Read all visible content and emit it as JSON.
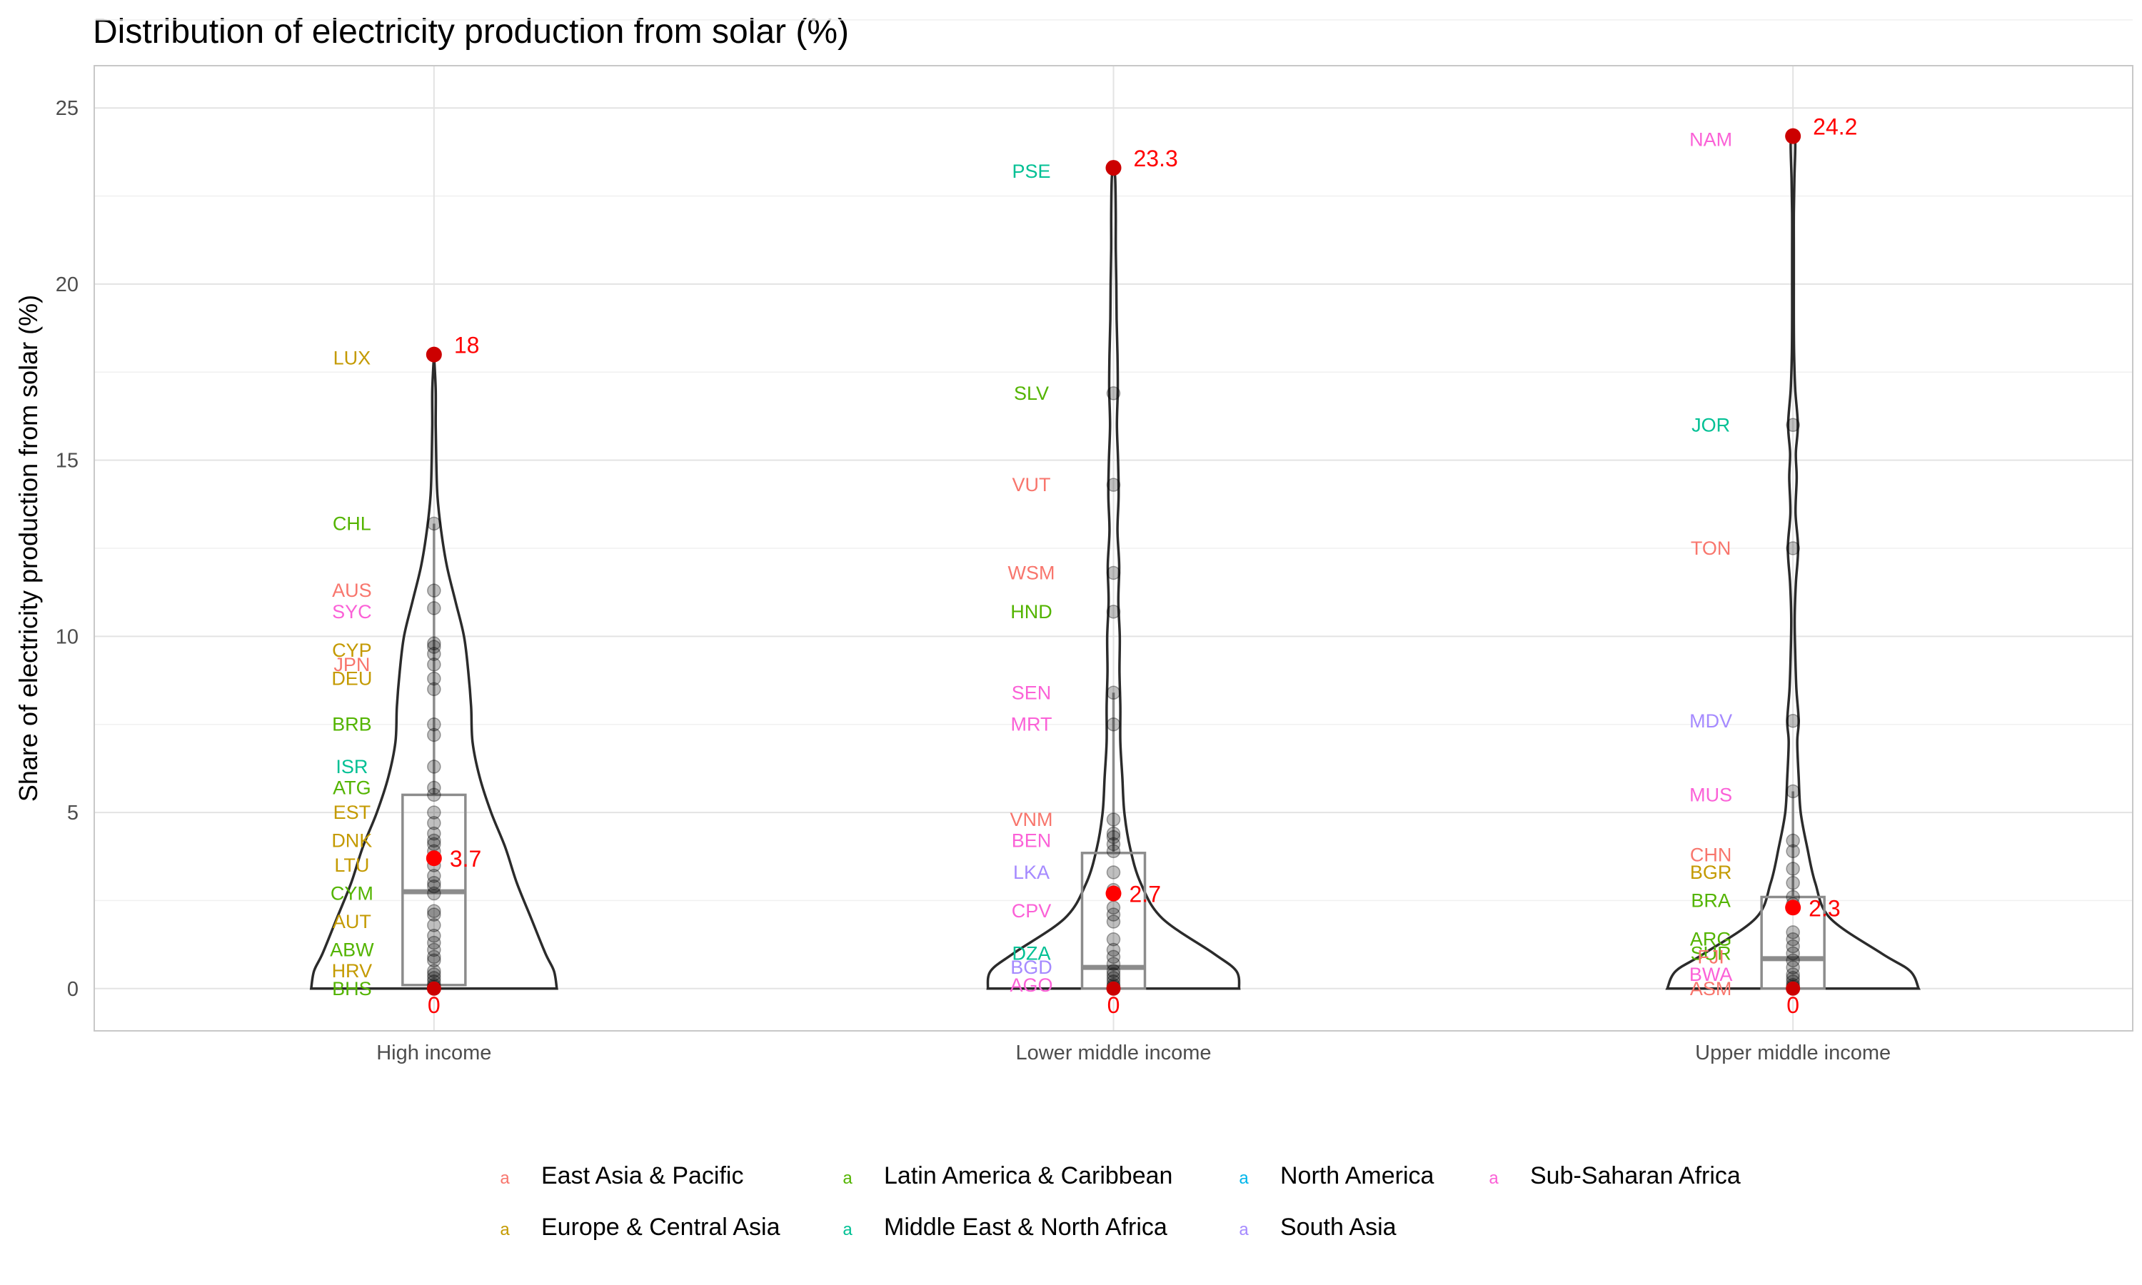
{
  "chart_data": {
    "type": "violin",
    "title": "Distribution of electricity production from solar (%)",
    "xlabel": "",
    "ylabel": "Share of electricity production from solar (%)",
    "ylim": [
      -1.2,
      26.2
    ],
    "y_ticks": [
      0,
      5,
      10,
      15,
      20,
      25
    ],
    "grid": true,
    "legend_position": "bottom",
    "region_colors": {
      "East Asia & Pacific": "#F8766D",
      "Europe & Central Asia": "#C49A00",
      "Latin America & Caribbean": "#53B400",
      "Middle East & North Africa": "#00C094",
      "North America": "#00B6EB",
      "South Asia": "#A58AFF",
      "Sub-Saharan Africa": "#FB61D7"
    },
    "legend": {
      "key_glyph": "a",
      "entries": [
        "East Asia & Pacific",
        "Latin America & Caribbean",
        "North America",
        "Sub-Saharan Africa",
        "Europe & Central Asia",
        "Middle East & North Africa",
        "South Asia"
      ]
    },
    "categories": [
      "High income",
      "Lower middle income",
      "Upper middle income"
    ],
    "groups": [
      {
        "category": "High income",
        "max": 18,
        "max_label": "18",
        "mean": 3.7,
        "mean_label": "3.7",
        "min": 0,
        "min_label": "0",
        "box": {
          "q1": 0.1,
          "median": 2.75,
          "q3": 5.5,
          "whisker_low": 0,
          "whisker_high": 13.2
        },
        "points": [
          18,
          13.2,
          11.3,
          10.8,
          9.8,
          9.7,
          9.5,
          9.2,
          8.8,
          8.5,
          7.5,
          7.2,
          6.3,
          5.7,
          5.5,
          5.0,
          4.7,
          4.4,
          4.2,
          4.1,
          3.9,
          3.5,
          3.2,
          3.0,
          2.9,
          2.7,
          2.2,
          2.1,
          1.8,
          1.5,
          1.3,
          1.1,
          0.9,
          0.8,
          0.5,
          0.4,
          0.3,
          0.2,
          0.1,
          0.05,
          0
        ],
        "violin": [
          [
            0,
            0.43
          ],
          [
            0.5,
            0.42
          ],
          [
            1,
            0.39
          ],
          [
            2,
            0.34
          ],
          [
            3,
            0.29
          ],
          [
            4,
            0.25
          ],
          [
            5,
            0.2
          ],
          [
            6,
            0.16
          ],
          [
            7,
            0.135
          ],
          [
            8,
            0.13
          ],
          [
            9,
            0.12
          ],
          [
            10,
            0.105
          ],
          [
            11,
            0.075
          ],
          [
            12,
            0.045
          ],
          [
            13,
            0.025
          ],
          [
            14,
            0.012
          ],
          [
            15,
            0.008
          ],
          [
            16,
            0.006
          ],
          [
            17,
            0.006
          ],
          [
            18,
            0
          ]
        ],
        "labels": [
          {
            "code": "LUX",
            "value": 17.9,
            "region": "Europe & Central Asia"
          },
          {
            "code": "CHL",
            "value": 13.2,
            "region": "Latin America & Caribbean"
          },
          {
            "code": "AUS",
            "value": 11.3,
            "region": "East Asia & Pacific"
          },
          {
            "code": "SYC",
            "value": 10.7,
            "region": "Sub-Saharan Africa"
          },
          {
            "code": "CYP",
            "value": 9.6,
            "region": "Europe & Central Asia"
          },
          {
            "code": "JPN",
            "value": 9.2,
            "region": "East Asia & Pacific"
          },
          {
            "code": "DEU",
            "value": 8.8,
            "region": "Europe & Central Asia"
          },
          {
            "code": "BRB",
            "value": 7.5,
            "region": "Latin America & Caribbean"
          },
          {
            "code": "ISR",
            "value": 6.3,
            "region": "Middle East & North Africa"
          },
          {
            "code": "ATG",
            "value": 5.7,
            "region": "Latin America & Caribbean"
          },
          {
            "code": "EST",
            "value": 5.0,
            "region": "Europe & Central Asia"
          },
          {
            "code": "DNK",
            "value": 4.2,
            "region": "Europe & Central Asia"
          },
          {
            "code": "LTU",
            "value": 3.5,
            "region": "Europe & Central Asia"
          },
          {
            "code": "CYM",
            "value": 2.7,
            "region": "Latin America & Caribbean"
          },
          {
            "code": "AUT",
            "value": 1.9,
            "region": "Europe & Central Asia"
          },
          {
            "code": "ABW",
            "value": 1.1,
            "region": "Latin America & Caribbean"
          },
          {
            "code": "HRV",
            "value": 0.5,
            "region": "Europe & Central Asia"
          },
          {
            "code": "BHS",
            "value": 0.0,
            "region": "Latin America & Caribbean"
          }
        ]
      },
      {
        "category": "Lower middle income",
        "max": 23.3,
        "max_label": "23.3",
        "mean": 2.7,
        "mean_label": "2.7",
        "min": 0,
        "min_label": "0",
        "box": {
          "q1": 0,
          "median": 0.6,
          "q3": 3.85,
          "whisker_low": 0,
          "whisker_high": 8.4
        },
        "points": [
          23.3,
          16.9,
          14.3,
          11.8,
          10.7,
          8.4,
          7.5,
          4.8,
          4.4,
          4.3,
          4.1,
          3.9,
          3.3,
          2.8,
          2.3,
          2.1,
          1.9,
          1.4,
          1.1,
          0.9,
          0.7,
          0.5,
          0.4,
          0.3,
          0.2,
          0.1,
          0.05,
          0
        ],
        "violin": [
          [
            0,
            0.44
          ],
          [
            0.5,
            0.43
          ],
          [
            1,
            0.35
          ],
          [
            2,
            0.17
          ],
          [
            3,
            0.095
          ],
          [
            4,
            0.058
          ],
          [
            5,
            0.038
          ],
          [
            6,
            0.031
          ],
          [
            7,
            0.024
          ],
          [
            8,
            0.024
          ],
          [
            9,
            0.021
          ],
          [
            10,
            0.022
          ],
          [
            11,
            0.017
          ],
          [
            12,
            0.02
          ],
          [
            13,
            0.014
          ],
          [
            14,
            0.018
          ],
          [
            15,
            0.016
          ],
          [
            16,
            0.012
          ],
          [
            17,
            0.015
          ],
          [
            18,
            0.014
          ],
          [
            19,
            0.011
          ],
          [
            20,
            0.01
          ],
          [
            21,
            0.008
          ],
          [
            22,
            0.008
          ],
          [
            23,
            0.006
          ],
          [
            23.3,
            0
          ]
        ],
        "labels": [
          {
            "code": "PSE",
            "value": 23.2,
            "region": "Middle East & North Africa"
          },
          {
            "code": "SLV",
            "value": 16.9,
            "region": "Latin America & Caribbean"
          },
          {
            "code": "VUT",
            "value": 14.3,
            "region": "East Asia & Pacific"
          },
          {
            "code": "WSM",
            "value": 11.8,
            "region": "East Asia & Pacific"
          },
          {
            "code": "HND",
            "value": 10.7,
            "region": "Latin America & Caribbean"
          },
          {
            "code": "SEN",
            "value": 8.4,
            "region": "Sub-Saharan Africa"
          },
          {
            "code": "MRT",
            "value": 7.5,
            "region": "Sub-Saharan Africa"
          },
          {
            "code": "VNM",
            "value": 4.8,
            "region": "East Asia & Pacific"
          },
          {
            "code": "BEN",
            "value": 4.2,
            "region": "Sub-Saharan Africa"
          },
          {
            "code": "LKA",
            "value": 3.3,
            "region": "South Asia"
          },
          {
            "code": "CPV",
            "value": 2.2,
            "region": "Sub-Saharan Africa"
          },
          {
            "code": "DZA",
            "value": 1.0,
            "region": "Middle East & North Africa"
          },
          {
            "code": "BGD",
            "value": 0.6,
            "region": "South Asia"
          },
          {
            "code": "AGO",
            "value": 0.1,
            "region": "Sub-Saharan Africa"
          }
        ]
      },
      {
        "category": "Upper middle income",
        "max": 24.2,
        "max_label": "24.2",
        "mean": 2.3,
        "mean_label": "2.3",
        "min": 0,
        "min_label": "0",
        "box": {
          "q1": 0,
          "median": 0.85,
          "q3": 2.6,
          "whisker_low": 0,
          "whisker_high": 5.6
        },
        "points": [
          24.2,
          16.0,
          12.5,
          7.6,
          5.6,
          4.2,
          3.9,
          3.4,
          3.0,
          2.6,
          2.4,
          1.6,
          1.4,
          1.2,
          1.0,
          0.8,
          0.6,
          0.4,
          0.3,
          0.2,
          0.1,
          0.05,
          0
        ],
        "violin": [
          [
            0,
            0.44
          ],
          [
            0.5,
            0.41
          ],
          [
            1,
            0.31
          ],
          [
            2,
            0.13
          ],
          [
            3,
            0.078
          ],
          [
            4,
            0.05
          ],
          [
            5,
            0.027
          ],
          [
            6,
            0.02
          ],
          [
            7,
            0.015
          ],
          [
            7.6,
            0.02
          ],
          [
            8.5,
            0.012
          ],
          [
            9.5,
            0.008
          ],
          [
            10.5,
            0.006
          ],
          [
            11.5,
            0.01
          ],
          [
            12.5,
            0.018
          ],
          [
            13.5,
            0.009
          ],
          [
            14.5,
            0.013
          ],
          [
            15.2,
            0.01
          ],
          [
            16,
            0.017
          ],
          [
            17,
            0.008
          ],
          [
            18,
            0.004
          ],
          [
            19,
            0.003
          ],
          [
            20,
            0.003
          ],
          [
            21,
            0.003
          ],
          [
            22,
            0.003
          ],
          [
            23,
            0.005
          ],
          [
            24,
            0.008
          ],
          [
            24.2,
            0
          ]
        ],
        "labels": [
          {
            "code": "NAM",
            "value": 24.1,
            "region": "Sub-Saharan Africa"
          },
          {
            "code": "JOR",
            "value": 16.0,
            "region": "Middle East & North Africa"
          },
          {
            "code": "TON",
            "value": 12.5,
            "region": "East Asia & Pacific"
          },
          {
            "code": "MDV",
            "value": 7.6,
            "region": "South Asia"
          },
          {
            "code": "MUS",
            "value": 5.5,
            "region": "Sub-Saharan Africa"
          },
          {
            "code": "CHN",
            "value": 3.8,
            "region": "East Asia & Pacific"
          },
          {
            "code": "BGR",
            "value": 3.3,
            "region": "Europe & Central Asia"
          },
          {
            "code": "BRA",
            "value": 2.5,
            "region": "Latin America & Caribbean"
          },
          {
            "code": "ARG",
            "value": 1.4,
            "region": "Latin America & Caribbean"
          },
          {
            "code": "SUR",
            "value": 1.0,
            "region": "Latin America & Caribbean"
          },
          {
            "code": "FJI",
            "value": 0.9,
            "region": "East Asia & Pacific"
          },
          {
            "code": "BWA",
            "value": 0.4,
            "region": "Sub-Saharan Africa"
          },
          {
            "code": "ASM",
            "value": 0.0,
            "region": "East Asia & Pacific"
          }
        ]
      }
    ]
  }
}
